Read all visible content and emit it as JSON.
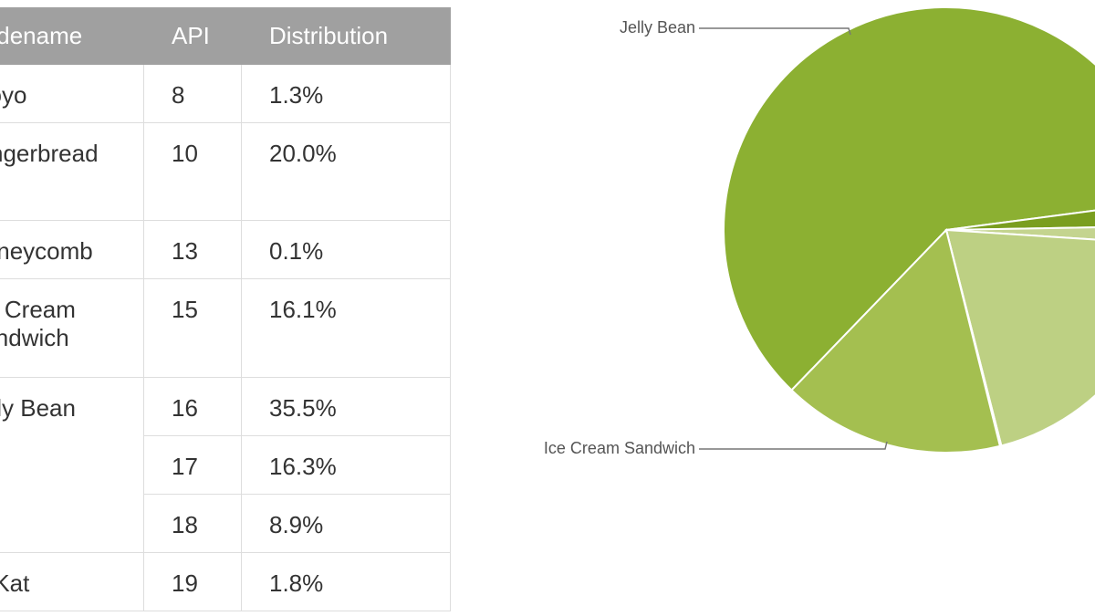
{
  "table": {
    "header": [
      "Codename",
      "API",
      "Distribution"
    ],
    "rows": [
      {
        "codename": "Froyo",
        "versions": [
          {
            "api": 8,
            "distribution": "1.3%"
          }
        ]
      },
      {
        "codename": "Gingerbread",
        "versions": [
          {
            "api": 10,
            "distribution": "20.0%"
          }
        ]
      },
      {
        "codename": "Honeycomb",
        "versions": [
          {
            "api": 13,
            "distribution": "0.1%"
          }
        ]
      },
      {
        "codename": "Ice Cream Sandwich",
        "versions": [
          {
            "api": 15,
            "distribution": "16.1%"
          }
        ]
      },
      {
        "codename": "Jelly Bean",
        "versions": [
          {
            "api": 16,
            "distribution": "35.5%"
          },
          {
            "api": 17,
            "distribution": "16.3%"
          },
          {
            "api": 18,
            "distribution": "8.9%"
          }
        ]
      },
      {
        "codename": "KitKat",
        "versions": [
          {
            "api": 19,
            "distribution": "1.8%"
          }
        ]
      }
    ]
  },
  "chart_data": {
    "type": "pie",
    "categories": [
      "Jelly Bean",
      null,
      null,
      null,
      null,
      "Ice Cream Sandwich"
    ],
    "values": [
      60.7,
      1.8,
      1.3,
      20.0,
      0.1,
      16.1
    ],
    "colors": [
      "#8cb032",
      "#7a9e1f",
      "#c4d48f",
      "#bdd083",
      "#b0c86a",
      "#a4bf50"
    ]
  }
}
